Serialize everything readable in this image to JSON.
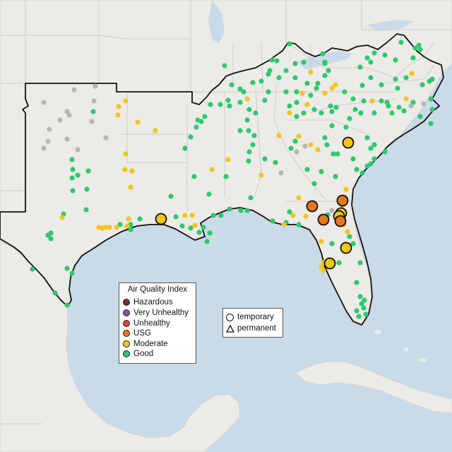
{
  "colors": {
    "ocean": "#c9dbe9",
    "land": "#ecebe7",
    "hazardous": "#7e2b25",
    "very_unhealthy": "#8e4fa3",
    "unhealthy": "#e0432f",
    "usg": "#e6761f",
    "moderate": "#f2c51a",
    "good": "#2ec96e",
    "unknown": "#b6b6b6"
  },
  "aqi_legend": {
    "title": "Air Quality Index",
    "items": [
      {
        "label": "Hazardous",
        "color": "#7e2b25"
      },
      {
        "label": "Very Unhealthy",
        "color": "#8e4fa3"
      },
      {
        "label": "Unhealthy",
        "color": "#e0432f"
      },
      {
        "label": "USG",
        "color": "#e6761f"
      },
      {
        "label": "Moderate",
        "color": "#f2c51a"
      },
      {
        "label": "Good",
        "color": "#2ec96e"
      }
    ]
  },
  "site_legend": {
    "temporary": "temporary",
    "permanent": "permanent"
  }
}
